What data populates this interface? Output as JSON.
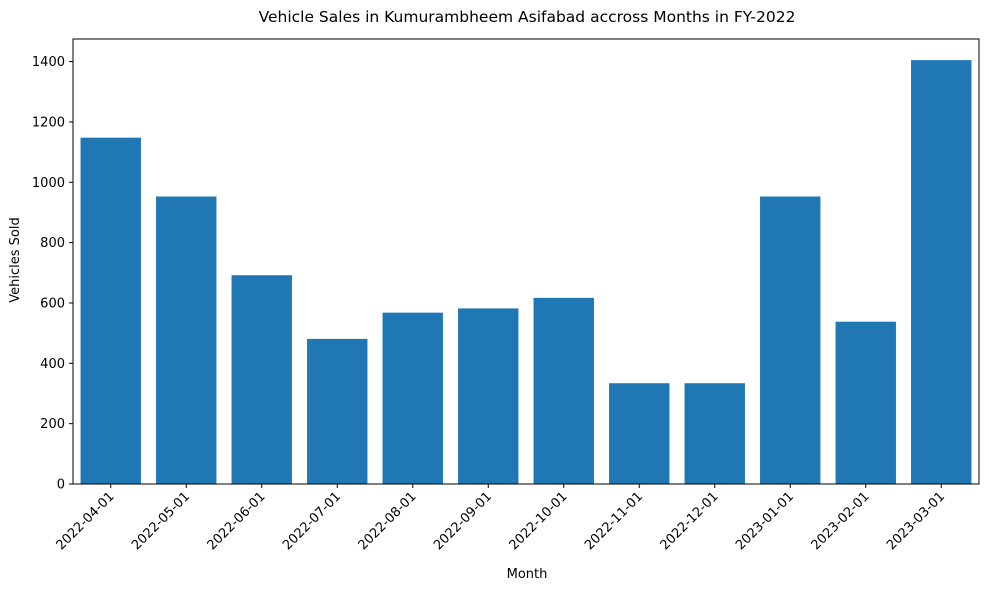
{
  "chart_data": {
    "type": "bar",
    "title": "Vehicle Sales in Kumurambheem Asifabad accross Months in FY-2022",
    "xlabel": "Month",
    "ylabel": "Vehicles Sold",
    "categories": [
      "2022-04-01",
      "2022-05-01",
      "2022-06-01",
      "2022-07-01",
      "2022-08-01",
      "2022-09-01",
      "2022-10-01",
      "2022-11-01",
      "2022-12-01",
      "2023-01-01",
      "2023-02-01",
      "2023-03-01"
    ],
    "values": [
      1148,
      953,
      692,
      481,
      568,
      582,
      617,
      334,
      334,
      953,
      538,
      1405
    ],
    "ylim": [
      0,
      1475
    ],
    "yticks": [
      0,
      200,
      400,
      600,
      800,
      1000,
      1200,
      1400
    ],
    "bar_color": "#1f77b4",
    "grid": false,
    "legend": "none"
  }
}
